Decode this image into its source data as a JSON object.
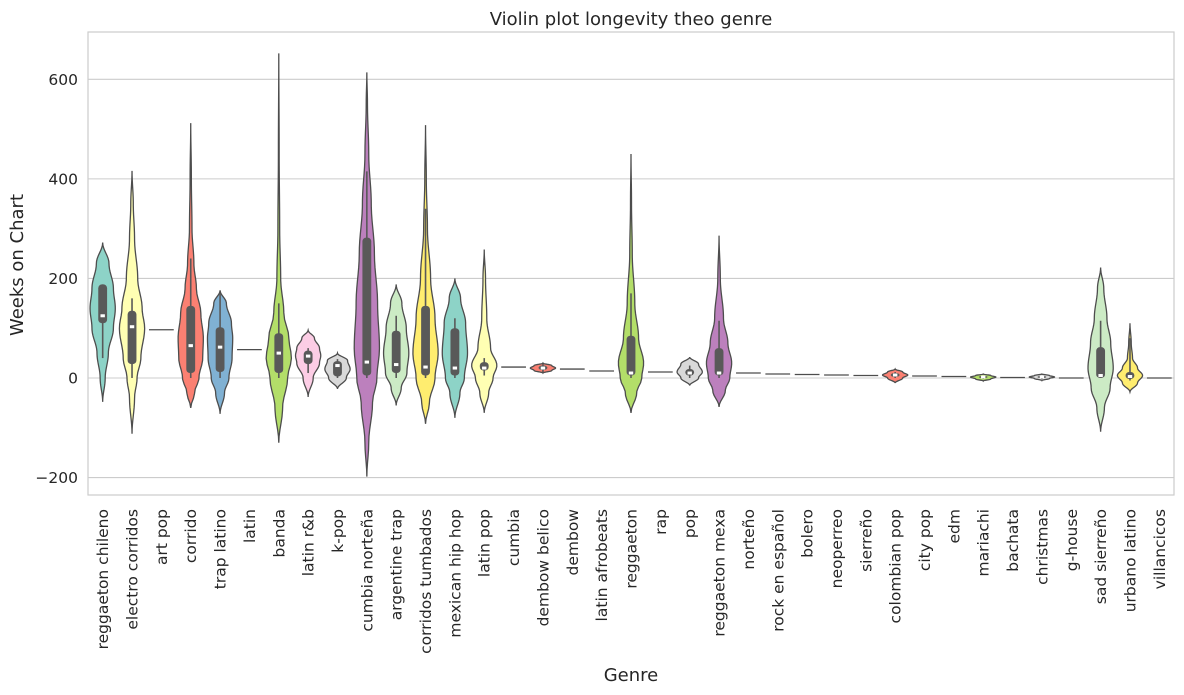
{
  "chart_data": {
    "type": "violin",
    "title": "Violin plot longevity theo genre",
    "xlabel": "Genre",
    "ylabel": "Weeks on Chart",
    "ylim": [
      -235,
      695
    ],
    "yticks": [
      -200,
      0,
      200,
      400,
      600
    ],
    "ytick_labels": [
      "−200",
      "0",
      "200",
      "400",
      "600"
    ],
    "grid": "horizontal",
    "legend": "none",
    "categories": [
      "reggaeton chileno",
      "electro corridos",
      "art pop",
      "corrido",
      "trap latino",
      "latin",
      "banda",
      "latin r&b",
      "k-pop",
      "cumbia norteña",
      "argentine trap",
      "corridos tumbados",
      "mexican hip hop",
      "latin pop",
      "cumbia",
      "dembow belico",
      "dembow",
      "latin afrobeats",
      "reggaeton",
      "rap",
      "pop",
      "reggaeton mexa",
      "norteño",
      "rock en español",
      "bolero",
      "neoperreo",
      "sierreño",
      "colombian pop",
      "city pop",
      "edm",
      "mariachi",
      "bachata",
      "christmas",
      "g-house",
      "sad sierreño",
      "urbano latino",
      "villancicos"
    ],
    "colors": [
      "#8dd3c7",
      "#ffffb3",
      "#bebada",
      "#fb8072",
      "#80b1d3",
      "#fdb462",
      "#b3de69",
      "#fccde5",
      "#d9d9d9",
      "#bc80bd",
      "#ccebc5",
      "#ffed6f",
      "#8dd3c7",
      "#ffffb3",
      "#bebada",
      "#fb8072",
      "#80b1d3",
      "#fdb462",
      "#b3de69",
      "#fccde5",
      "#d9d9d9",
      "#bc80bd",
      "#ccebc5",
      "#ffed6f",
      "#8dd3c7",
      "#ffffb3",
      "#bebada",
      "#fb8072",
      "#80b1d3",
      "#fdb462",
      "#b3de69",
      "#fccde5",
      "#d9d9d9",
      "#bc80bd",
      "#ccebc5",
      "#ffed6f",
      "#8dd3c7"
    ],
    "violins": [
      {
        "min": -48,
        "max": 272,
        "q1": 110,
        "median": 125,
        "q3": 188,
        "wlo": 40,
        "whi": 188,
        "profile": [
          [
            -48,
            0
          ],
          [
            0,
            0.2
          ],
          [
            50,
            0.45
          ],
          [
            100,
            0.85
          ],
          [
            140,
            1
          ],
          [
            180,
            0.85
          ],
          [
            230,
            0.5
          ],
          [
            272,
            0
          ]
        ]
      },
      {
        "min": -112,
        "max": 416,
        "q1": 28,
        "median": 103,
        "q3": 135,
        "wlo": 0,
        "whi": 160,
        "profile": [
          [
            -112,
            0
          ],
          [
            -40,
            0.2
          ],
          [
            0,
            0.4
          ],
          [
            40,
            0.7
          ],
          [
            100,
            1
          ],
          [
            140,
            0.8
          ],
          [
            200,
            0.45
          ],
          [
            280,
            0.2
          ],
          [
            350,
            0.1
          ],
          [
            416,
            0
          ]
        ]
      },
      {
        "flat": true,
        "value": 97
      },
      {
        "min": -60,
        "max": 512,
        "q1": 10,
        "median": 65,
        "q3": 145,
        "wlo": 0,
        "whi": 240,
        "profile": [
          [
            -60,
            0
          ],
          [
            -30,
            0.3
          ],
          [
            0,
            0.65
          ],
          [
            40,
            0.95
          ],
          [
            80,
            1
          ],
          [
            130,
            0.8
          ],
          [
            180,
            0.45
          ],
          [
            230,
            0.25
          ],
          [
            300,
            0.1
          ],
          [
            400,
            0.05
          ],
          [
            512,
            0
          ]
        ]
      },
      {
        "min": -72,
        "max": 176,
        "q1": 12,
        "median": 62,
        "q3": 102,
        "wlo": 0,
        "whi": 170,
        "profile": [
          [
            -72,
            0
          ],
          [
            -30,
            0.35
          ],
          [
            0,
            0.7
          ],
          [
            40,
            0.95
          ],
          [
            80,
            1
          ],
          [
            110,
            0.9
          ],
          [
            150,
            0.5
          ],
          [
            176,
            0
          ]
        ]
      },
      {
        "flat": true,
        "value": 57
      },
      {
        "min": -130,
        "max": 652,
        "q1": 10,
        "median": 50,
        "q3": 90,
        "wlo": 0,
        "whi": 150,
        "profile": [
          [
            -130,
            0
          ],
          [
            -60,
            0.3
          ],
          [
            0,
            0.7
          ],
          [
            40,
            1
          ],
          [
            80,
            0.8
          ],
          [
            130,
            0.4
          ],
          [
            200,
            0.15
          ],
          [
            300,
            0.07
          ],
          [
            450,
            0.03
          ],
          [
            652,
            0
          ]
        ]
      },
      {
        "min": -38,
        "max": 96,
        "q1": 28,
        "median": 44,
        "q3": 55,
        "wlo": 10,
        "whi": 60,
        "profile": [
          [
            -38,
            0
          ],
          [
            0,
            0.4
          ],
          [
            30,
            0.9
          ],
          [
            45,
            1
          ],
          [
            60,
            0.9
          ],
          [
            80,
            0.5
          ],
          [
            96,
            0
          ]
        ]
      },
      {
        "min": -22,
        "max": 50,
        "q1": 3,
        "median": 25,
        "q3": 34,
        "wlo": 0,
        "whi": 38,
        "profile": [
          [
            -22,
            0
          ],
          [
            0,
            0.7
          ],
          [
            18,
            1
          ],
          [
            35,
            0.8
          ],
          [
            50,
            0
          ]
        ]
      },
      {
        "min": -198,
        "max": 614,
        "q1": 5,
        "median": 32,
        "q3": 282,
        "wlo": 0,
        "whi": 415,
        "profile": [
          [
            -198,
            0
          ],
          [
            -130,
            0.15
          ],
          [
            -50,
            0.45
          ],
          [
            0,
            0.8
          ],
          [
            60,
            1
          ],
          [
            150,
            0.85
          ],
          [
            250,
            0.6
          ],
          [
            350,
            0.35
          ],
          [
            450,
            0.15
          ],
          [
            550,
            0.05
          ],
          [
            614,
            0
          ]
        ]
      },
      {
        "min": -55,
        "max": 188,
        "q1": 10,
        "median": 27,
        "q3": 95,
        "wlo": 0,
        "whi": 125,
        "profile": [
          [
            -55,
            0
          ],
          [
            -20,
            0.4
          ],
          [
            10,
            0.85
          ],
          [
            50,
            1
          ],
          [
            100,
            0.8
          ],
          [
            150,
            0.45
          ],
          [
            188,
            0
          ]
        ]
      },
      {
        "min": -92,
        "max": 508,
        "q1": 5,
        "median": 22,
        "q3": 145,
        "wlo": 0,
        "whi": 340,
        "profile": [
          [
            -92,
            0
          ],
          [
            -50,
            0.3
          ],
          [
            0,
            0.75
          ],
          [
            50,
            1
          ],
          [
            120,
            0.75
          ],
          [
            200,
            0.4
          ],
          [
            300,
            0.15
          ],
          [
            400,
            0.06
          ],
          [
            508,
            0
          ]
        ]
      },
      {
        "min": -80,
        "max": 200,
        "q1": 5,
        "median": 20,
        "q3": 100,
        "wlo": 0,
        "whi": 120,
        "profile": [
          [
            -80,
            0
          ],
          [
            -30,
            0.4
          ],
          [
            0,
            0.75
          ],
          [
            50,
            1
          ],
          [
            110,
            0.85
          ],
          [
            160,
            0.45
          ],
          [
            200,
            0
          ]
        ]
      },
      {
        "min": -70,
        "max": 258,
        "q1": 15,
        "median": 20,
        "q3": 32,
        "wlo": 5,
        "whi": 40,
        "profile": [
          [
            -70,
            0
          ],
          [
            -30,
            0.35
          ],
          [
            0,
            0.7
          ],
          [
            25,
            1
          ],
          [
            60,
            0.5
          ],
          [
            120,
            0.2
          ],
          [
            200,
            0.1
          ],
          [
            258,
            0
          ]
        ]
      },
      {
        "flat": true,
        "value": 22
      },
      {
        "min": 10,
        "max": 30,
        "q1": 16,
        "median": 20,
        "q3": 25,
        "wlo": 12,
        "whi": 28,
        "profile": [
          [
            10,
            0
          ],
          [
            15,
            0.7
          ],
          [
            20,
            1
          ],
          [
            25,
            0.7
          ],
          [
            30,
            0
          ]
        ]
      },
      {
        "flat": true,
        "value": 18
      },
      {
        "flat": true,
        "value": 14
      },
      {
        "min": -70,
        "max": 450,
        "q1": 5,
        "median": 10,
        "q3": 85,
        "wlo": 0,
        "whi": 170,
        "profile": [
          [
            -70,
            0
          ],
          [
            -30,
            0.45
          ],
          [
            0,
            0.85
          ],
          [
            30,
            1
          ],
          [
            80,
            0.6
          ],
          [
            150,
            0.3
          ],
          [
            250,
            0.1
          ],
          [
            350,
            0.04
          ],
          [
            450,
            0
          ]
        ]
      },
      {
        "flat": true,
        "value": 12
      },
      {
        "min": -15,
        "max": 42,
        "q1": 5,
        "median": 10,
        "q3": 18,
        "wlo": 0,
        "whi": 25,
        "profile": [
          [
            -15,
            0
          ],
          [
            0,
            0.7
          ],
          [
            12,
            1
          ],
          [
            28,
            0.7
          ],
          [
            42,
            0
          ]
        ]
      },
      {
        "min": -58,
        "max": 286,
        "q1": 5,
        "median": 10,
        "q3": 60,
        "wlo": 0,
        "whi": 115,
        "profile": [
          [
            -58,
            0
          ],
          [
            -25,
            0.5
          ],
          [
            0,
            0.85
          ],
          [
            30,
            1
          ],
          [
            70,
            0.7
          ],
          [
            120,
            0.35
          ],
          [
            200,
            0.1
          ],
          [
            286,
            0
          ]
        ]
      },
      {
        "flat": true,
        "value": 10
      },
      {
        "flat": true,
        "value": 8
      },
      {
        "flat": true,
        "value": 7
      },
      {
        "flat": true,
        "value": 6
      },
      {
        "flat": true,
        "value": 5
      },
      {
        "min": -10,
        "max": 18,
        "q1": 2,
        "median": 6,
        "q3": 10,
        "wlo": 0,
        "whi": 12,
        "profile": [
          [
            -10,
            0
          ],
          [
            0,
            0.6
          ],
          [
            6,
            1
          ],
          [
            12,
            0.6
          ],
          [
            18,
            0
          ]
        ]
      },
      {
        "flat": true,
        "value": 4
      },
      {
        "flat": true,
        "value": 3
      },
      {
        "min": -6,
        "max": 8,
        "q1": 0,
        "median": 2,
        "q3": 4,
        "wlo": -2,
        "whi": 5,
        "profile": [
          [
            -6,
            0
          ],
          [
            -2,
            0.6
          ],
          [
            2,
            1
          ],
          [
            5,
            0.6
          ],
          [
            8,
            0
          ]
        ]
      },
      {
        "flat": true,
        "value": 1
      },
      {
        "min": -5,
        "max": 8,
        "q1": 0,
        "median": 2,
        "q3": 4,
        "wlo": -2,
        "whi": 5,
        "profile": [
          [
            -5,
            0
          ],
          [
            -1,
            0.6
          ],
          [
            2,
            1
          ],
          [
            5,
            0.6
          ],
          [
            8,
            0
          ]
        ]
      },
      {
        "flat": true,
        "value": 0
      },
      {
        "min": -108,
        "max": 222,
        "q1": 0,
        "median": 5,
        "q3": 62,
        "wlo": 0,
        "whi": 115,
        "profile": [
          [
            -108,
            0
          ],
          [
            -60,
            0.3
          ],
          [
            -20,
            0.75
          ],
          [
            20,
            1
          ],
          [
            70,
            0.8
          ],
          [
            120,
            0.5
          ],
          [
            180,
            0.25
          ],
          [
            222,
            0
          ]
        ]
      },
      {
        "min": -28,
        "max": 110,
        "q1": -2,
        "median": 3,
        "q3": 12,
        "wlo": -5,
        "whi": 80,
        "profile": [
          [
            -28,
            0
          ],
          [
            -10,
            0.6
          ],
          [
            5,
            1
          ],
          [
            20,
            0.6
          ],
          [
            40,
            0.2
          ],
          [
            70,
            0.1
          ],
          [
            110,
            0
          ]
        ]
      },
      {
        "flat": true,
        "value": 0
      }
    ]
  }
}
